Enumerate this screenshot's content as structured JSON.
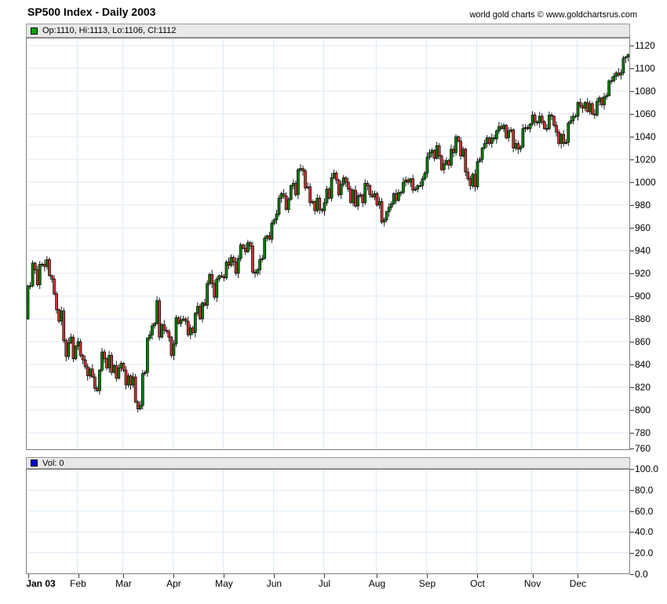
{
  "header": {
    "title": "SP500 Index - Daily 2003",
    "copyright": "world gold charts © www.goldchartsrus.com"
  },
  "price_panel": {
    "legend": "Op:1110, Hi:1113, Lo:1106, Cl:1112",
    "legend_swatch_color": "#00a500",
    "y_axis_labels": [
      "1120",
      "1100",
      "1080",
      "1060",
      "1040",
      "1020",
      "1000",
      "980",
      "960",
      "940",
      "920",
      "900",
      "880",
      "860",
      "840",
      "820",
      "800",
      "780",
      "760"
    ]
  },
  "volume_panel": {
    "legend": "Vol: 0",
    "legend_swatch_color": "#0000cc",
    "y_axis_labels": [
      "100.0",
      "80.0",
      "60.0",
      "40.0",
      "20.0",
      "0.0"
    ]
  },
  "chart_data": {
    "type": "candlestick",
    "title": "SP500 Index - Daily 2003",
    "ylim": [
      765,
      1127
    ],
    "y_step": 20,
    "volume_ylim": [
      0,
      100
    ],
    "volume_values_shown": 0,
    "grid": true,
    "legend_position": "top",
    "colors": {
      "up": "#008000",
      "down": "#cc3333",
      "wick": "#000000",
      "grid": "#ddeaf6"
    },
    "first_open": 880,
    "last_candle": {
      "op": 1110,
      "hi": 1113,
      "lo": 1106,
      "cl": 1112
    },
    "months": [
      {
        "label": "Jan 03",
        "bold": true,
        "closes": [
          909,
          909,
          929,
          923,
          910,
          928,
          928,
          926,
          932,
          918,
          915,
          902,
          888,
          878,
          887,
          861,
          847,
          859,
          864,
          845,
          856
        ]
      },
      {
        "label": "Feb",
        "closes": [
          860,
          848,
          844,
          838,
          830,
          836,
          829,
          819,
          817,
          835,
          851,
          845,
          837,
          848,
          833,
          839,
          828,
          837,
          841
        ]
      },
      {
        "label": "Mar",
        "closes": [
          835,
          822,
          830,
          822,
          829,
          807,
          801,
          804,
          832,
          833,
          863,
          866,
          874,
          876,
          896,
          864,
          875,
          870,
          869,
          864,
          848
        ]
      },
      {
        "label": "Apr",
        "closes": [
          858,
          881,
          876,
          879,
          880,
          878,
          866,
          872,
          868,
          885,
          891,
          880,
          894,
          892,
          911,
          919,
          911,
          899,
          915,
          918,
          917
        ]
      },
      {
        "label": "May",
        "closes": [
          916,
          930,
          927,
          934,
          930,
          920,
          933,
          945,
          942,
          939,
          947,
          944,
          921,
          920,
          923,
          932,
          933,
          951,
          953,
          950,
          964
        ]
      },
      {
        "label": "Jun",
        "closes": [
          967,
          972,
          986,
          990,
          988,
          976,
          985,
          997,
          999,
          989,
          1011,
          1012,
          1010,
          995,
          996,
          982,
          983,
          975,
          986,
          976,
          975
        ]
      },
      {
        "label": "Jul",
        "closes": [
          982,
          994,
          986,
          1004,
          1008,
          1002,
          989,
          998,
          1004,
          1000,
          994,
          982,
          993,
          979,
          988,
          989,
          982,
          999,
          997,
          989,
          987,
          990
        ]
      },
      {
        "label": "Aug",
        "closes": [
          980,
          983,
          965,
          967,
          974,
          978,
          981,
          990,
          984,
          991,
          991,
          1000,
          1002,
          1000,
          1003,
          993,
          994,
          997,
          997,
          1003,
          1008
        ]
      },
      {
        "label": "Sep",
        "closes": [
          1022,
          1026,
          1028,
          1021,
          1032,
          1023,
          1011,
          1016,
          1019,
          1015,
          1029,
          1026,
          1040,
          1036,
          1023,
          1029,
          1009,
          1003,
          997,
          1007,
          996
        ]
      },
      {
        "label": "Oct",
        "closes": [
          1018,
          1020,
          1030,
          1034,
          1039,
          1034,
          1039,
          1038,
          1045,
          1049,
          1047,
          1050,
          1039,
          1045,
          1046,
          1030,
          1034,
          1029,
          1031,
          1047,
          1048,
          1047,
          1051
        ]
      },
      {
        "label": "Nov",
        "closes": [
          1059,
          1053,
          1052,
          1058,
          1053,
          1047,
          1047,
          1059,
          1058,
          1050,
          1044,
          1034,
          1042,
          1034,
          1035,
          1052,
          1054,
          1058,
          1058
        ]
      },
      {
        "label": "Dec",
        "closes": [
          1070,
          1067,
          1065,
          1070,
          1062,
          1069,
          1060,
          1059,
          1071,
          1074,
          1068,
          1075,
          1076,
          1089,
          1089,
          1093,
          1096,
          1094,
          1096,
          1109,
          1110,
          1112
        ]
      }
    ]
  }
}
